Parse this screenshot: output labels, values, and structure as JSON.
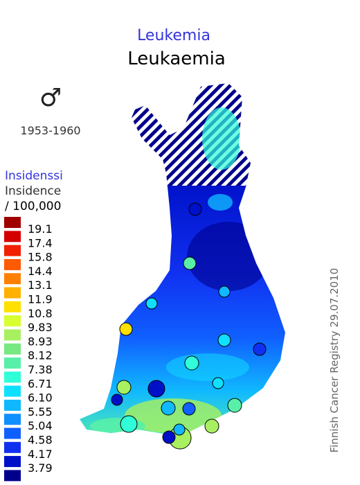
{
  "header": {
    "title_fi": "Leukemia",
    "title_en": "Leukaemia",
    "sex_symbol": "♂",
    "period": "1953-1960"
  },
  "legend": {
    "title_fi": "Insidenssi",
    "title_en": "Insidence",
    "unit": "/ 100,000",
    "colors": [
      "#a00000",
      "#d40000",
      "#f02000",
      "#ff5a00",
      "#ff8000",
      "#ffb000",
      "#ffe000",
      "#d8ff30",
      "#a8f060",
      "#78e880",
      "#58f0a8",
      "#30ffd8",
      "#10e0ff",
      "#10b8ff",
      "#1090ff",
      "#1060ff",
      "#1030f0",
      "#0010c8",
      "#00008c"
    ],
    "labels": [
      "19.1",
      "17.4",
      "15.8",
      "14.4",
      "13.1",
      "11.9",
      "10.8",
      "9.83",
      "8.93",
      "8.12",
      "7.38",
      "6.71",
      "6.10",
      "5.55",
      "5.04",
      "4.58",
      "4.17",
      "3.79"
    ]
  },
  "footer": {
    "source": "Finnish Cancer Registry 29.07.2010"
  }
}
